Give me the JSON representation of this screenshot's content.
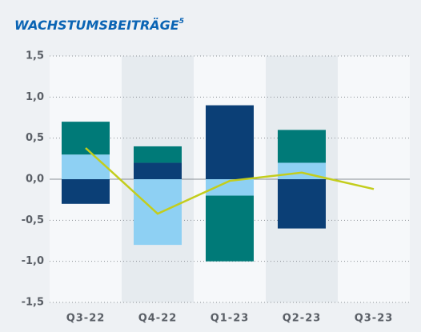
{
  "chart_data": {
    "type": "bar",
    "stacked": true,
    "title": "WACHSTUMSBEITRÄGE",
    "title_footnote": "5",
    "categories": [
      "Q3-22",
      "Q4-22",
      "Q1-23",
      "Q2-23",
      "Q3-23"
    ],
    "series": [
      {
        "color": "#0b3f76",
        "values": [
          -0.3,
          0.2,
          0.9,
          -0.6,
          null
        ]
      },
      {
        "color": "#8ed0f3",
        "values": [
          0.3,
          -0.8,
          -0.2,
          0.2,
          null
        ]
      },
      {
        "color": "#007a78",
        "values": [
          0.4,
          0.2,
          -0.8,
          0.4,
          null
        ]
      },
      {
        "type": "line",
        "color": "#c3cd1c",
        "values": [
          0.38,
          -0.42,
          -0.02,
          0.08,
          -0.12
        ]
      }
    ],
    "ylim": [
      -1.5,
      1.5
    ],
    "yticks": [
      {
        "value": -1.5,
        "label": "-1,5"
      },
      {
        "value": -1,
        "label": "-1,0"
      },
      {
        "value": -0.5,
        "label": "-0,5"
      },
      {
        "value": 0,
        "label": "0,0"
      },
      {
        "value": 0.5,
        "label": "0,5"
      },
      {
        "value": 1,
        "label": "1,0"
      },
      {
        "value": 1.5,
        "label": "1,5"
      }
    ],
    "grid": true
  }
}
